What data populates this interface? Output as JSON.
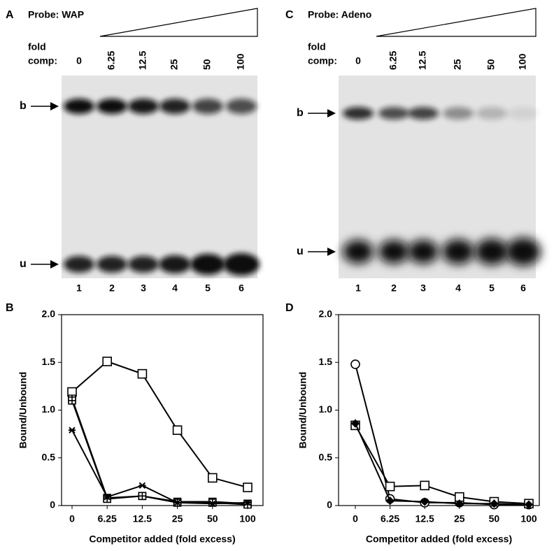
{
  "gels": [
    {
      "panel": "A",
      "probe": "Probe: WAP",
      "fold_label": "fold",
      "comp_label": "comp:",
      "amounts": [
        "0",
        "6.25",
        "12.5",
        "25",
        "50",
        "100"
      ],
      "lanes": [
        "1",
        "2",
        "3",
        "4",
        "5",
        "6"
      ],
      "bound_label": "b",
      "unbound_label": "u"
    },
    {
      "panel": "C",
      "probe": "Probe: Adeno",
      "fold_label": "fold",
      "comp_label": "comp:",
      "amounts": [
        "0",
        "6.25",
        "12.5",
        "25",
        "50",
        "100"
      ],
      "lanes": [
        "1",
        "2",
        "3",
        "4",
        "5",
        "6"
      ],
      "bound_label": "b",
      "unbound_label": "u"
    }
  ],
  "chart_data": [
    {
      "type": "line",
      "panel": "B",
      "categories": [
        "0",
        "6.25",
        "12.5",
        "25",
        "50",
        "100"
      ],
      "ylim": [
        0,
        2
      ],
      "yticks": [
        0,
        0.5,
        {
          "value": 1,
          "label": "1.0"
        },
        1.5,
        {
          "value": 2,
          "label": "2.0"
        }
      ],
      "ylabel": "Bound/Unbound",
      "xlabel": "Competitor added (fold excess)",
      "series": [
        {
          "color": "#000000",
          "marker": "square",
          "values": [
            1.19,
            1.51,
            1.38,
            0.79,
            0.29,
            0.19
          ]
        },
        {
          "color": "#000000",
          "marker": "boxplus",
          "values": [
            1.12,
            0.08,
            0.1,
            0.04,
            0.04,
            0.02
          ]
        },
        {
          "color": "#000000",
          "marker": "boxplus",
          "values": [
            1.1,
            0.07,
            0.1,
            0.03,
            0.03,
            0.01
          ]
        },
        {
          "color": "#000000",
          "marker": "asterisk",
          "values": [
            0.79,
            0.09,
            0.21,
            0.03,
            0.02,
            0.03
          ]
        }
      ]
    },
    {
      "type": "line",
      "panel": "D",
      "categories": [
        "0",
        "6.25",
        "12.5",
        "25",
        "50",
        "100"
      ],
      "ylim": [
        0,
        2
      ],
      "yticks": [
        0,
        0.5,
        {
          "value": 1,
          "label": "1.0"
        },
        1.5,
        {
          "value": 2,
          "label": "2.0"
        }
      ],
      "ylabel": "Bound/Unbound",
      "xlabel": "Competitor added (fold excess)",
      "series": [
        {
          "color": "#000000",
          "marker": "circle",
          "values": [
            1.48,
            0.07,
            0.03,
            0.03,
            0.01,
            0.01
          ]
        },
        {
          "color": "#000000",
          "marker": "square",
          "values": [
            0.84,
            0.2,
            0.21,
            0.09,
            0.04,
            0.02
          ]
        },
        {
          "color": "#000000",
          "marker": "diamond",
          "values": [
            0.86,
            0.05,
            0.04,
            0.02,
            0.02,
            0.01
          ]
        }
      ]
    }
  ]
}
